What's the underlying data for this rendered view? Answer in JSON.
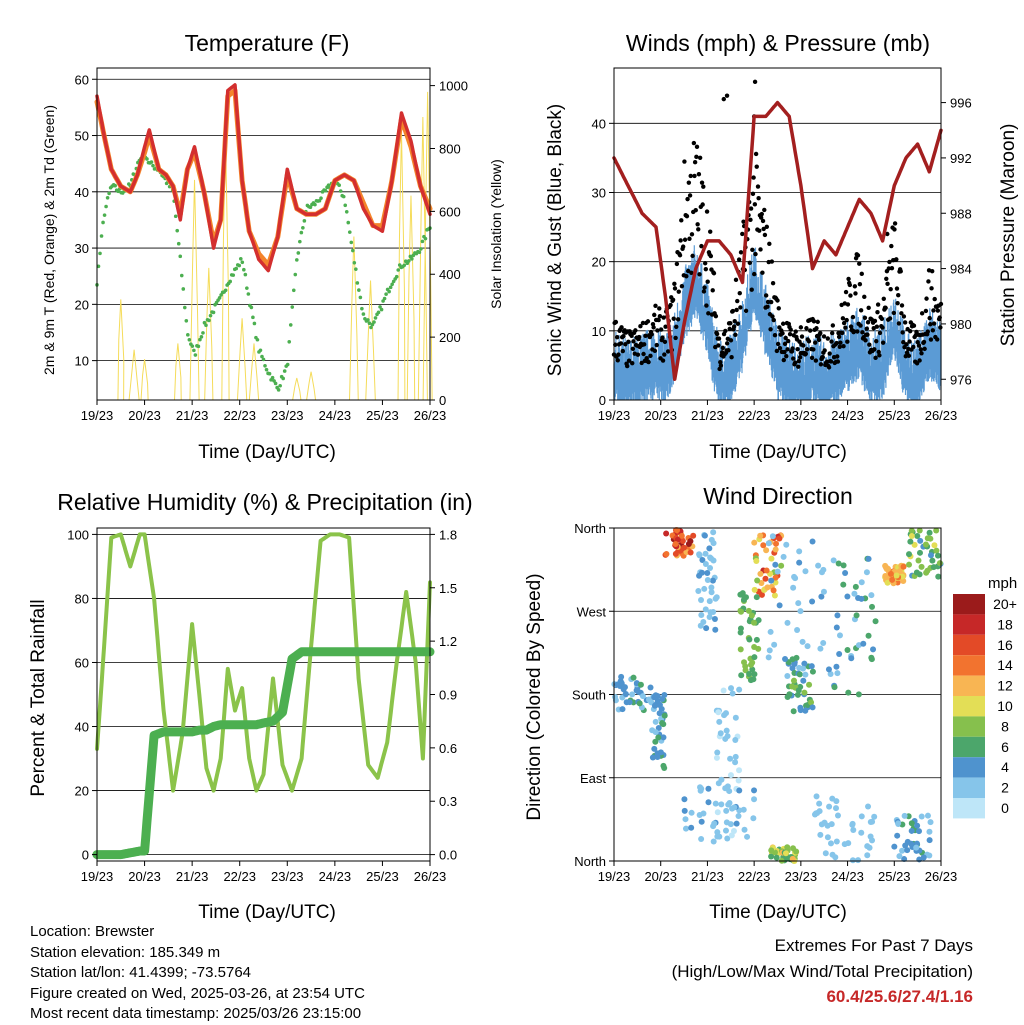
{
  "colors": {
    "temp_2m": "#d32f2f",
    "temp_9m": "#f4842b",
    "dewpoint": "#4caf50",
    "solar": "#f5dc5a",
    "wind": "#5b9bd5",
    "gust": "#000000",
    "pressure": "#a31f1f",
    "rh": "#8bc34a",
    "precip": "#4caf50",
    "extremes_text": "#c62828"
  },
  "time_axis": {
    "label": "Time (Day/UTC)",
    "ticks": [
      "19/23",
      "20/23",
      "21/23",
      "22/23",
      "23/23",
      "24/23",
      "25/23",
      "26/23"
    ]
  },
  "chart_data": [
    {
      "id": "temperature",
      "type": "line",
      "title": "Temperature (F)",
      "ylabel": "2m & 9m T (Red, Orange) & 2m Td (Green)",
      "ylabel_right": "Solar Insolation (Yellow)",
      "xlabel": "Time (Day/UTC)",
      "ylim": [
        3,
        62
      ],
      "yticks": [
        10,
        20,
        30,
        40,
        50,
        60
      ],
      "ylim_right": [
        0,
        1056
      ],
      "yticks_right": [
        0,
        200,
        400,
        600,
        800,
        1000
      ],
      "grid": true,
      "x_days": [
        0,
        0.15,
        0.3,
        0.5,
        0.7,
        0.85,
        1.0,
        1.1,
        1.3,
        1.45,
        1.6,
        1.75,
        1.9,
        2.05,
        2.25,
        2.45,
        2.6,
        2.75,
        2.9,
        3.05,
        3.2,
        3.4,
        3.6,
        3.8,
        4.0,
        4.2,
        4.4,
        4.6,
        4.8,
        5.0,
        5.2,
        5.4,
        5.6,
        5.8,
        6.0,
        6.2,
        6.4,
        6.6,
        6.8,
        7.0
      ],
      "series": [
        {
          "key": "temp_2m",
          "values": [
            57,
            50,
            44,
            41,
            40,
            43,
            48,
            51,
            44,
            43,
            41,
            35,
            44,
            48,
            40,
            30,
            35,
            58,
            59,
            42,
            33,
            28,
            26,
            32,
            44,
            37,
            36,
            36,
            37,
            42,
            43,
            42,
            37,
            34,
            33,
            42,
            54,
            49,
            41,
            36
          ]
        },
        {
          "key": "temp_9m",
          "values": [
            56,
            50,
            44,
            41,
            40,
            43,
            47,
            50,
            44,
            43,
            41,
            36,
            44,
            47,
            40,
            31,
            35,
            57,
            58,
            42,
            33,
            29,
            27,
            32,
            43,
            37,
            36,
            36,
            37,
            42,
            43,
            42,
            38,
            34,
            34,
            42,
            53,
            48,
            41,
            37
          ]
        },
        {
          "key": "dewpoint",
          "values": [
            24,
            36,
            41,
            40,
            41,
            45,
            47,
            45,
            44,
            42,
            40,
            28,
            15,
            11,
            16,
            19,
            21,
            24,
            26,
            28,
            21,
            12,
            8,
            5,
            9,
            28,
            37,
            38,
            40,
            42,
            39,
            28,
            18,
            16,
            20,
            24,
            27,
            28,
            30,
            34
          ]
        },
        {
          "key": "solar",
          "values": [
            0,
            0,
            0,
            320,
            0,
            0,
            0,
            0,
            0,
            0,
            0,
            0,
            0,
            700,
            0,
            0,
            850,
            0,
            0,
            0,
            0,
            0,
            0,
            0,
            0,
            0,
            0,
            0,
            0,
            0,
            0,
            0,
            0,
            0,
            0,
            0,
            860,
            0,
            0,
            0
          ]
        }
      ]
    },
    {
      "id": "winds",
      "type": "scatter",
      "title": "Winds (mph) & Pressure (mb)",
      "ylabel": "Sonic Wind & Gust (Blue, Black)",
      "ylabel_right": "Station Pressure (Maroon)",
      "xlabel": "Time (Day/UTC)",
      "ylim": [
        0,
        48
      ],
      "yticks": [
        0,
        10,
        20,
        30,
        40
      ],
      "ylim_right": [
        974.5,
        998.5
      ],
      "yticks_right": [
        976,
        980,
        984,
        988,
        992,
        996
      ],
      "grid": true,
      "x_days": [
        0,
        0.3,
        0.6,
        0.9,
        1.1,
        1.3,
        1.5,
        1.75,
        2.0,
        2.25,
        2.5,
        2.75,
        3.0,
        3.25,
        3.5,
        3.75,
        4.0,
        4.25,
        4.5,
        4.75,
        5.0,
        5.25,
        5.5,
        5.75,
        6.0,
        6.25,
        6.5,
        6.75,
        7.0
      ],
      "series": [
        {
          "key": "wind",
          "values": [
            5,
            4,
            5,
            6,
            5,
            8,
            14,
            18,
            12,
            4,
            5,
            10,
            18,
            12,
            6,
            4,
            4,
            5,
            4,
            5,
            7,
            9,
            5,
            6,
            12,
            5,
            4,
            9,
            7
          ]
        },
        {
          "key": "gust",
          "values": [
            10,
            8,
            9,
            11,
            10,
            14,
            28,
            32,
            24,
            8,
            10,
            20,
            30,
            22,
            12,
            9,
            8,
            10,
            8,
            9,
            14,
            18,
            10,
            12,
            22,
            10,
            8,
            16,
            12
          ]
        },
        {
          "key": "pressure",
          "values": [
            992,
            990,
            988,
            987,
            982,
            976,
            980,
            984,
            986,
            986,
            985,
            983,
            995,
            995,
            996,
            995,
            990,
            984,
            986,
            985,
            987,
            989,
            988,
            986,
            990,
            992,
            993,
            991,
            994
          ]
        }
      ]
    },
    {
      "id": "humidity",
      "type": "line",
      "title": "Relative Humidity (%) & Precipitation (in)",
      "ylabel": "Percent & Total Rainfall",
      "xlabel": "Time (Day/UTC)",
      "ylim": [
        -2,
        102
      ],
      "yticks": [
        0,
        20,
        40,
        60,
        80,
        100
      ],
      "ylim_right": [
        -0.036,
        1.836
      ],
      "yticks_right": [
        "0.0",
        "0.3",
        "0.6",
        "0.9",
        "1.2",
        "1.5",
        "1.8"
      ],
      "grid": true,
      "x_days": [
        0,
        0.15,
        0.3,
        0.5,
        0.7,
        0.9,
        1.0,
        1.2,
        1.4,
        1.6,
        1.8,
        2.0,
        2.15,
        2.3,
        2.45,
        2.6,
        2.75,
        2.9,
        3.05,
        3.2,
        3.35,
        3.5,
        3.7,
        3.9,
        4.1,
        4.3,
        4.5,
        4.7,
        4.9,
        5.1,
        5.3,
        5.5,
        5.7,
        5.9,
        6.1,
        6.3,
        6.5,
        6.7,
        6.85,
        7.0
      ],
      "series": [
        {
          "key": "rh",
          "values": [
            33,
            65,
            99,
            100,
            90,
            100,
            100,
            80,
            45,
            20,
            38,
            72,
            50,
            27,
            20,
            30,
            58,
            45,
            52,
            30,
            20,
            25,
            55,
            28,
            20,
            30,
            65,
            98,
            100,
            100,
            99,
            55,
            28,
            24,
            35,
            60,
            82,
            60,
            30,
            85
          ]
        },
        {
          "key": "precip",
          "values": [
            0,
            0,
            0,
            0,
            0.01,
            0.02,
            0.02,
            0.67,
            0.69,
            0.69,
            0.69,
            0.69,
            0.7,
            0.7,
            0.72,
            0.73,
            0.73,
            0.73,
            0.73,
            0.73,
            0.73,
            0.74,
            0.75,
            0.8,
            1.1,
            1.14,
            1.14,
            1.14,
            1.14,
            1.14,
            1.14,
            1.14,
            1.14,
            1.14,
            1.14,
            1.14,
            1.14,
            1.14,
            1.14,
            1.14
          ]
        }
      ]
    },
    {
      "id": "wind_direction",
      "type": "scatter",
      "title": "Wind Direction",
      "ylabel": "Direction (Colored By Speed)",
      "xlabel": "Time (Day/UTC)",
      "yticks": [
        "North",
        "East",
        "South",
        "West",
        "North"
      ],
      "grid": true,
      "colorbar": {
        "title": "mph",
        "labels": [
          "0",
          "2",
          "4",
          "6",
          "8",
          "10",
          "12",
          "14",
          "16",
          "18",
          "20+"
        ],
        "colors": [
          "#bee6f8",
          "#86c5ea",
          "#4f93ce",
          "#4ca66b",
          "#86c04d",
          "#e3de56",
          "#f8b553",
          "#f2732f",
          "#e34a27",
          "#c62828",
          "#9b1b1b"
        ]
      },
      "clusters": [
        {
          "day": [
            0.0,
            0.9
          ],
          "dir": [
            160,
            200
          ],
          "speed": [
            2,
            6
          ]
        },
        {
          "day": [
            0.8,
            1.1
          ],
          "dir": [
            100,
            180
          ],
          "speed": [
            2,
            6
          ]
        },
        {
          "day": [
            1.1,
            1.7
          ],
          "dir": [
            330,
            358
          ],
          "speed": [
            12,
            20
          ]
        },
        {
          "day": [
            1.8,
            2.2
          ],
          "dir": [
            250,
            358
          ],
          "speed": [
            1,
            4
          ]
        },
        {
          "day": [
            2.2,
            2.7
          ],
          "dir": [
            20,
            190
          ],
          "speed": [
            0,
            3
          ]
        },
        {
          "day": [
            2.7,
            3.1
          ],
          "dir": [
            190,
            290
          ],
          "speed": [
            5,
            9
          ]
        },
        {
          "day": [
            3.0,
            3.6
          ],
          "dir": [
            285,
            355
          ],
          "speed": [
            8,
            18
          ]
        },
        {
          "day": [
            3.7,
            4.3
          ],
          "dir": [
            160,
            220
          ],
          "speed": [
            3,
            8
          ]
        },
        {
          "day": [
            3.3,
            4.7
          ],
          "dir": [
            200,
            355
          ],
          "speed": [
            1,
            4
          ]
        },
        {
          "day": [
            4.7,
            5.6
          ],
          "dir": [
            180,
            330
          ],
          "speed": [
            2,
            6
          ]
        },
        {
          "day": [
            5.8,
            6.2
          ],
          "dir": [
            300,
            320
          ],
          "speed": [
            9,
            14
          ]
        },
        {
          "day": [
            6.3,
            7.0
          ],
          "dir": [
            305,
            358
          ],
          "speed": [
            4,
            10
          ]
        },
        {
          "day": [
            6.0,
            6.8
          ],
          "dir": [
            0,
            50
          ],
          "speed": [
            2,
            6
          ]
        },
        {
          "day": [
            3.3,
            3.9
          ],
          "dir": [
            0,
            15
          ],
          "speed": [
            5,
            12
          ]
        },
        {
          "day": [
            1.5,
            3.0
          ],
          "dir": [
            20,
            80
          ],
          "speed": [
            1,
            4
          ]
        },
        {
          "day": [
            4.3,
            5.6
          ],
          "dir": [
            0,
            70
          ],
          "speed": [
            1,
            3
          ]
        }
      ]
    }
  ],
  "info": {
    "location": "Location: Brewster",
    "elevation": "Station elevation: 185.349 m",
    "latlon": "Station lat/lon: 41.4399; -73.5764",
    "created": "Figure created on Wed, 2025-03-26, at 23:54 UTC",
    "recent": "Most recent data timestamp: 2025/03/26 23:15:00"
  },
  "extremes": {
    "title": "Extremes For Past 7 Days",
    "subtitle": "(High/Low/Max Wind/Total Precipitation)",
    "values": "60.4/25.6/27.4/1.16"
  }
}
